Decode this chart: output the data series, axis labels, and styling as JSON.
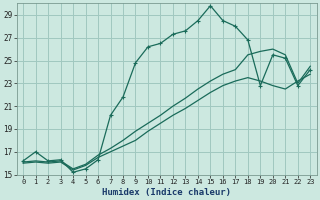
{
  "xlabel": "Humidex (Indice chaleur)",
  "bg_color": "#cce8e0",
  "grid_color": "#a0c8c0",
  "line_color": "#1a6b5a",
  "xlim": [
    -0.5,
    23.5
  ],
  "ylim": [
    15,
    30
  ],
  "yticks": [
    15,
    17,
    19,
    21,
    23,
    25,
    27,
    29
  ],
  "xticks": [
    0,
    1,
    2,
    3,
    4,
    5,
    6,
    7,
    8,
    9,
    10,
    11,
    12,
    13,
    14,
    15,
    16,
    17,
    18,
    19,
    20,
    21,
    22,
    23
  ],
  "series1_x": [
    0,
    1,
    2,
    3,
    4,
    5,
    6,
    7,
    8,
    9,
    10,
    11,
    12,
    13,
    14,
    15,
    16,
    17,
    18,
    19,
    20,
    21,
    22,
    23
  ],
  "series1_y": [
    16.2,
    17.0,
    16.2,
    16.3,
    15.2,
    15.5,
    16.3,
    20.2,
    21.8,
    24.8,
    26.2,
    26.5,
    27.3,
    27.6,
    28.5,
    29.8,
    28.5,
    28.0,
    26.8,
    22.8,
    25.5,
    25.2,
    22.8,
    24.2
  ],
  "series2_x": [
    0,
    1,
    2,
    3,
    4,
    5,
    6,
    7,
    8,
    9,
    10,
    11,
    12,
    13,
    14,
    15,
    16,
    17,
    18,
    19,
    20,
    21,
    22,
    23
  ],
  "series2_y": [
    16.0,
    16.1,
    16.0,
    16.1,
    15.4,
    15.8,
    16.5,
    17.0,
    17.5,
    18.0,
    18.8,
    19.5,
    20.2,
    20.8,
    21.5,
    22.2,
    22.8,
    23.2,
    23.5,
    23.2,
    22.8,
    22.5,
    23.2,
    23.8
  ],
  "series3_x": [
    0,
    1,
    2,
    3,
    4,
    5,
    6,
    7,
    8,
    9,
    10,
    11,
    12,
    13,
    14,
    15,
    16,
    17,
    18,
    19,
    20,
    21,
    22,
    23
  ],
  "series3_y": [
    16.1,
    16.2,
    16.1,
    16.2,
    15.5,
    15.9,
    16.7,
    17.3,
    18.0,
    18.8,
    19.5,
    20.2,
    21.0,
    21.7,
    22.5,
    23.2,
    23.8,
    24.2,
    25.5,
    25.8,
    26.0,
    25.5,
    23.0,
    24.5
  ]
}
